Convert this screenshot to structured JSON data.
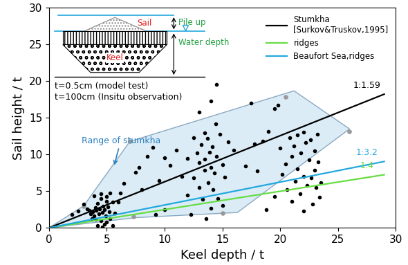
{
  "chart_data": {
    "type": "scatter",
    "x_label": "Keel depth / t",
    "y_label": "Sail height / t",
    "xlim": [
      0,
      30
    ],
    "ylim": [
      0,
      30
    ],
    "xticks": [
      0,
      5,
      10,
      15,
      20,
      25,
      30
    ],
    "yticks": [
      0,
      5,
      10,
      15,
      20,
      25,
      30
    ],
    "grid": false,
    "legend": "upper right",
    "points": {
      "color": "#000000",
      "x": [
        3,
        3.3,
        3.5,
        3.6,
        3.8,
        3.9,
        4,
        4,
        4.1,
        4.2,
        4.3,
        4.4,
        4.5,
        4.5,
        4.6,
        4.7,
        4.8,
        4.8,
        4.9,
        5,
        5,
        5,
        5.1,
        5.2,
        5.3,
        5.3,
        5.5,
        5.5,
        4.2,
        3.7,
        4.6,
        5.7,
        6,
        2.5,
        2,
        3.9,
        4.5,
        6.5,
        7.5,
        7.8,
        8,
        8.5,
        9,
        9.5,
        10,
        10,
        10.5,
        11,
        11.5,
        6.2,
        9.2,
        12,
        12,
        12.5,
        12.5,
        12.8,
        13,
        13,
        13,
        13.2,
        13.3,
        13.5,
        13.5,
        13.5,
        13.7,
        13.8,
        13.9,
        14,
        14,
        14,
        14.1,
        14.2,
        14.3,
        14.4,
        14.5,
        14.5,
        14.6,
        14.8,
        15,
        15,
        15.2,
        13.6,
        12.3,
        15.5,
        16,
        17,
        17.5,
        17.8,
        18,
        18.5,
        19,
        19.5,
        19.5,
        19.8,
        20,
        20.2,
        20.5,
        20.6,
        20.8,
        21,
        21,
        21.2,
        21.3,
        21.5,
        21.5,
        21.7,
        21.8,
        22,
        22,
        22,
        22.2,
        22.3,
        22.5,
        22.6,
        22.7,
        22.8,
        23,
        23,
        23.1,
        23.2,
        23.3,
        23.4,
        23.5,
        18.8
      ],
      "values": [
        3.2,
        2.6,
        2.4,
        1.9,
        2.2,
        1.6,
        2.8,
        1.2,
        2.4,
        3.3,
        1.9,
        2.6,
        4.7,
        1.0,
        2.1,
        3.0,
        0.5,
        2.5,
        1.6,
        4.3,
        3.6,
        0.8,
        2.9,
        2.2,
        4.8,
        1.3,
        3.5,
        0.3,
        0.3,
        1.3,
        0.1,
        2.0,
        3.5,
        2.3,
        1.8,
        4.4,
        4.0,
        6.1,
        7.6,
        8.2,
        5.2,
        9.8,
        11,
        6.5,
        9.6,
        2.5,
        8.5,
        10.6,
        7,
        4.8,
        1.8,
        9.5,
        4.5,
        12.3,
        6.8,
        10.2,
        15.8,
        8.9,
        5.5,
        11.4,
        3.9,
        13,
        7.9,
        9.4,
        12.2,
        6.2,
        10.3,
        17.3,
        8.2,
        2.7,
        11.1,
        5.2,
        7.5,
        14.2,
        19.6,
        9.8,
        4,
        12.8,
        8.6,
        3.1,
        6.9,
        1.3,
        1.8,
        11.7,
        10.6,
        8.4,
        17,
        11.5,
        7.8,
        11.8,
        13.2,
        4.3,
        16.3,
        16.7,
        10.9,
        7.3,
        8.7,
        5.2,
        12.3,
        3.6,
        9.8,
        11.2,
        6.4,
        12.7,
        8.1,
        4.7,
        10.2,
        13.1,
        7,
        2.3,
        11.6,
        5.8,
        9.3,
        12,
        6.8,
        3.2,
        10.5,
        7.9,
        5.5,
        12.8,
        9,
        4.2,
        6.2,
        2.5
      ]
    },
    "range": {
      "label": "Range of stumkha",
      "color": "#2a7fc0",
      "x": [
        0,
        3,
        7,
        21.2,
        26,
        16.3,
        7.5,
        0
      ],
      "values": [
        0,
        3,
        11.8,
        18.7,
        13.5,
        2.1,
        1.4,
        0
      ],
      "vertex_x": [
        3,
        7,
        20.5,
        26,
        15,
        7.3
      ],
      "vertex_values": [
        3,
        11.8,
        17.9,
        13.2,
        2,
        1.5
      ]
    },
    "series": [
      {
        "name": "Stumkha\n[Surkov&Truskov,1995]",
        "color": "#000000",
        "type": "line",
        "label": "1:1.59",
        "x": [
          0,
          29
        ],
        "values": [
          0,
          18.24
        ]
      },
      {
        "name": "ridges",
        "color": "#66dd44",
        "type": "line",
        "label": "1:4",
        "x": [
          0,
          29
        ],
        "values": [
          0,
          7.25
        ]
      },
      {
        "name": "Beaufort Sea,ridges",
        "color": "#22a8dd",
        "type": "line",
        "label": "1:3.2",
        "x": [
          0,
          29
        ],
        "values": [
          0,
          9.06
        ]
      }
    ],
    "annotations": [
      "t=0.5cm (model test)",
      "t=100cm (Insitu observation)"
    ],
    "inset_labels": {
      "sail": "Sail",
      "pile_up": "Pile up",
      "keel": "Keel",
      "water_depth": "Water depth"
    }
  }
}
